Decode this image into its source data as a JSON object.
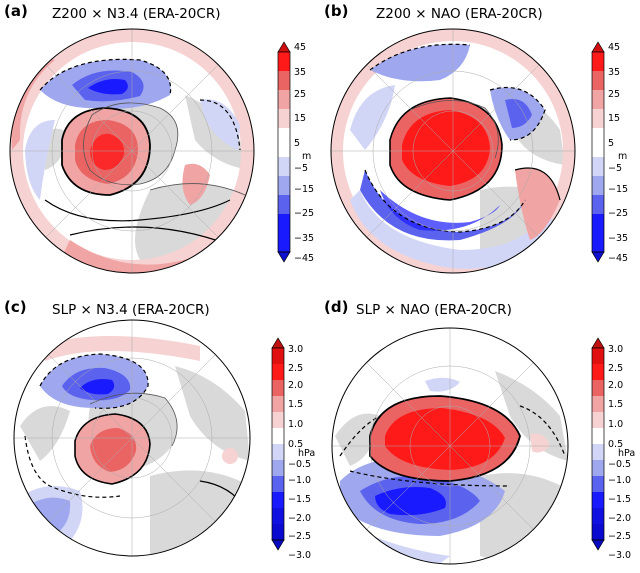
{
  "colors": {
    "neg_strong": "#1a1aff",
    "neg_mid": "#5a62ee",
    "neg_light": "#9fa8ee",
    "neg_faint": "#d2d6f6",
    "pos_faint": "#f6d2d2",
    "pos_light": "#f0a4a4",
    "pos_mid": "#ea6464",
    "pos_strong": "#ff1a1a",
    "land": "#d9d9d9",
    "coast": "#555555"
  },
  "panels": [
    {
      "label": "(a)",
      "title": "Z200 × N3.4 (ERA-20CR)",
      "colorbar": {
        "unit": "m",
        "ticks": [
          "45",
          "35",
          "25",
          "15",
          "5",
          "−5",
          "−15",
          "−25",
          "−35",
          "−45"
        ]
      }
    },
    {
      "label": "(b)",
      "title": "Z200 × NAO (ERA-20CR)",
      "colorbar": {
        "unit": "m",
        "ticks": [
          "45",
          "35",
          "25",
          "15",
          "5",
          "−5",
          "−15",
          "−25",
          "−35",
          "−45"
        ]
      }
    },
    {
      "label": "(c)",
      "title": "SLP × N3.4 (ERA-20CR)",
      "colorbar": {
        "unit": "hPa",
        "ticks": [
          "3.0",
          "2.5",
          "2.0",
          "1.5",
          "1.0",
          "0.5",
          "−0.5",
          "−1.0",
          "−1.5",
          "−2.0",
          "−2.5",
          "−3.0"
        ]
      }
    },
    {
      "label": "(d)",
      "title": "SLP × NAO (ERA-20CR)",
      "colorbar": {
        "unit": "hPa",
        "ticks": [
          "3.0",
          "2.5",
          "2.0",
          "1.5",
          "1.0",
          "0.5",
          "−0.5",
          "−1.0",
          "−1.5",
          "−2.0",
          "−2.5",
          "−3.0"
        ]
      }
    }
  ]
}
